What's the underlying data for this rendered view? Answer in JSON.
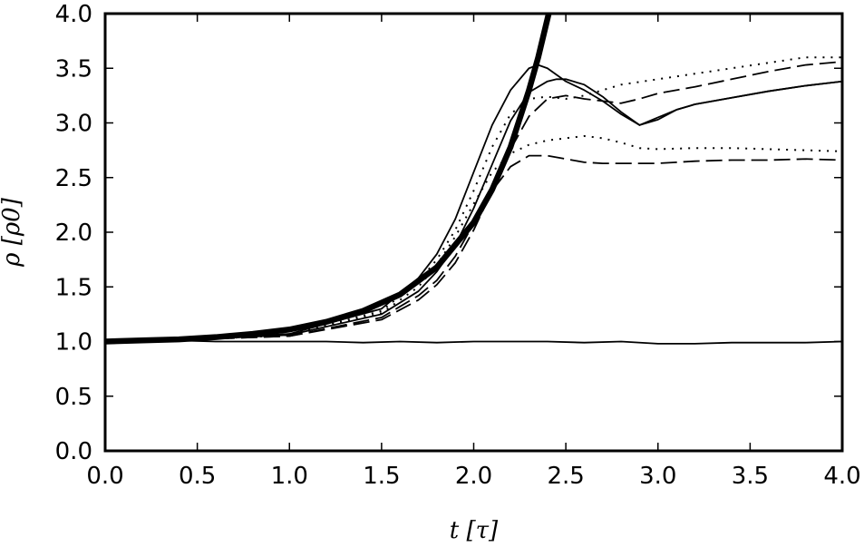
{
  "chart_data": {
    "type": "line",
    "xlabel": "t [τ]",
    "ylabel": "ρ [ρ0]",
    "xlim": [
      0.0,
      4.0
    ],
    "ylim": [
      0.0,
      4.0
    ],
    "xticks": [
      "0.0",
      "0.5",
      "1.0",
      "1.5",
      "2.0",
      "2.5",
      "3.0",
      "3.5",
      "4.0"
    ],
    "yticks": [
      "0.0",
      "0.5",
      "1.0",
      "1.5",
      "2.0",
      "2.5",
      "3.0",
      "3.5",
      "4.0"
    ],
    "grid": false,
    "series": [
      {
        "style": "thick-solid",
        "x": [
          0.0,
          0.2,
          0.4,
          0.6,
          0.8,
          1.0,
          1.2,
          1.4,
          1.6,
          1.8,
          2.0,
          2.1,
          2.2,
          2.3,
          2.35,
          2.4,
          2.45
        ],
        "y": [
          1.0,
          1.01,
          1.02,
          1.04,
          1.07,
          1.11,
          1.18,
          1.28,
          1.43,
          1.68,
          2.09,
          2.39,
          2.78,
          3.3,
          3.6,
          3.95,
          4.3
        ]
      },
      {
        "style": "solid",
        "x": [
          0.0,
          0.5,
          1.0,
          1.5,
          1.7,
          1.8,
          1.9,
          2.0,
          2.1,
          2.2,
          2.3,
          2.35,
          2.4,
          2.5,
          2.6,
          2.7,
          2.8,
          2.9,
          3.0,
          3.1,
          3.2,
          3.4,
          3.6,
          3.8,
          4.0
        ],
        "y": [
          1.0,
          1.02,
          1.07,
          1.3,
          1.58,
          1.8,
          2.12,
          2.55,
          2.98,
          3.3,
          3.5,
          3.53,
          3.5,
          3.38,
          3.3,
          3.2,
          3.08,
          2.98,
          3.05,
          3.12,
          3.17,
          3.23,
          3.29,
          3.34,
          3.38
        ]
      },
      {
        "style": "solid",
        "x": [
          0.0,
          0.5,
          1.0,
          1.5,
          1.7,
          1.8,
          1.9,
          2.0,
          2.1,
          2.2,
          2.3,
          2.4,
          2.45,
          2.5,
          2.6,
          2.7,
          2.8,
          2.9,
          3.0,
          3.1,
          3.2,
          3.4,
          3.6,
          3.8,
          4.0
        ],
        "y": [
          1.0,
          1.02,
          1.06,
          1.25,
          1.46,
          1.64,
          1.88,
          2.22,
          2.62,
          3.02,
          3.28,
          3.38,
          3.4,
          3.4,
          3.35,
          3.24,
          3.1,
          2.98,
          3.03,
          3.12,
          3.17,
          3.23,
          3.29,
          3.34,
          3.38
        ]
      },
      {
        "style": "dashed",
        "x": [
          0.0,
          0.5,
          1.0,
          1.5,
          1.7,
          1.8,
          1.9,
          2.0,
          2.1,
          2.2,
          2.3,
          2.4,
          2.5,
          2.6,
          2.7,
          2.8,
          2.9,
          3.0,
          3.2,
          3.4,
          3.6,
          3.8,
          4.0
        ],
        "y": [
          1.0,
          1.02,
          1.05,
          1.2,
          1.38,
          1.52,
          1.72,
          2.02,
          2.38,
          2.76,
          3.06,
          3.22,
          3.25,
          3.22,
          3.2,
          3.18,
          3.22,
          3.27,
          3.33,
          3.4,
          3.47,
          3.53,
          3.56
        ]
      },
      {
        "style": "dotted",
        "x": [
          0.0,
          0.5,
          1.0,
          1.5,
          1.7,
          1.8,
          1.9,
          2.0,
          2.1,
          2.2,
          2.3,
          2.4,
          2.5,
          2.6,
          2.7,
          2.8,
          3.0,
          3.2,
          3.4,
          3.6,
          3.8,
          4.0
        ],
        "y": [
          1.0,
          1.02,
          1.06,
          1.28,
          1.55,
          1.75,
          2.02,
          2.38,
          2.78,
          3.08,
          3.22,
          3.24,
          3.22,
          3.25,
          3.3,
          3.35,
          3.4,
          3.45,
          3.5,
          3.55,
          3.6,
          3.6
        ]
      },
      {
        "style": "dashed",
        "x": [
          0.0,
          0.5,
          1.0,
          1.5,
          1.7,
          1.8,
          1.9,
          2.0,
          2.1,
          2.2,
          2.3,
          2.4,
          2.5,
          2.6,
          2.7,
          2.8,
          3.0,
          3.2,
          3.4,
          3.6,
          3.8,
          4.0
        ],
        "y": [
          1.0,
          1.02,
          1.05,
          1.22,
          1.42,
          1.56,
          1.78,
          2.08,
          2.38,
          2.6,
          2.7,
          2.7,
          2.67,
          2.64,
          2.63,
          2.63,
          2.63,
          2.65,
          2.66,
          2.66,
          2.67,
          2.66
        ]
      },
      {
        "style": "dotted",
        "x": [
          0.0,
          0.5,
          1.0,
          1.5,
          1.7,
          1.8,
          1.9,
          2.0,
          2.1,
          2.2,
          2.3,
          2.4,
          2.5,
          2.6,
          2.7,
          2.8,
          2.9,
          3.0,
          3.2,
          3.4,
          3.6,
          3.8,
          4.0
        ],
        "y": [
          1.0,
          1.02,
          1.06,
          1.26,
          1.5,
          1.7,
          1.96,
          2.26,
          2.55,
          2.72,
          2.8,
          2.84,
          2.86,
          2.88,
          2.86,
          2.82,
          2.77,
          2.76,
          2.77,
          2.77,
          2.76,
          2.75,
          2.74
        ]
      },
      {
        "style": "solid",
        "x": [
          0.0,
          0.2,
          0.4,
          0.6,
          0.8,
          1.0,
          1.2,
          1.4,
          1.6,
          1.8,
          2.0,
          2.2,
          2.4,
          2.6,
          2.8,
          3.0,
          3.2,
          3.4,
          3.6,
          3.8,
          4.0
        ],
        "y": [
          1.0,
          1.0,
          1.01,
          1.0,
          1.0,
          1.0,
          1.0,
          0.99,
          1.0,
          0.99,
          1.0,
          1.0,
          1.0,
          0.99,
          1.0,
          0.98,
          0.98,
          0.99,
          0.99,
          0.99,
          1.0
        ]
      }
    ]
  }
}
